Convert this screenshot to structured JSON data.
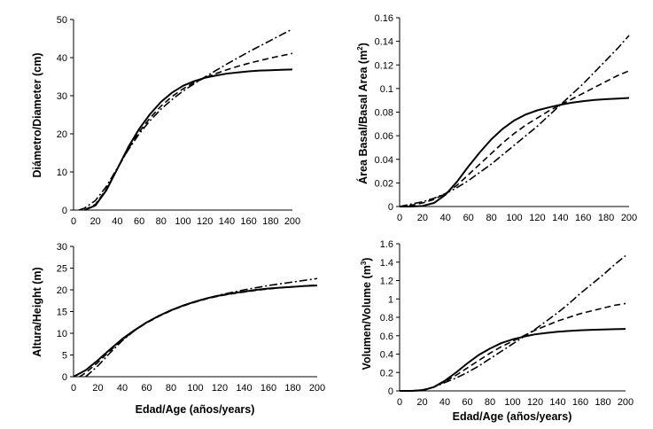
{
  "chart_data": [
    {
      "type": "line",
      "ylabel": "Diámetro/Diameter (cm)",
      "xlabel": "",
      "xlim": [
        0,
        200
      ],
      "ylim": [
        0,
        50
      ],
      "xticks": [
        "0",
        "20",
        "40",
        "60",
        "80",
        "100",
        "120",
        "140",
        "160",
        "180",
        "200"
      ],
      "yticks": [
        "0",
        "10",
        "20",
        "30",
        "40",
        "50"
      ],
      "grid": false,
      "series": [
        {
          "style": "solid",
          "x": [
            10,
            20,
            30,
            40,
            50,
            60,
            70,
            80,
            90,
            100,
            110,
            120,
            130,
            140,
            150,
            160,
            170,
            180,
            190,
            200
          ],
          "y": [
            0,
            1.2,
            5.2,
            10.8,
            16.5,
            21.3,
            25.2,
            28.4,
            30.8,
            32.6,
            33.8,
            34.7,
            35.3,
            35.8,
            36.1,
            36.4,
            36.6,
            36.7,
            36.8,
            36.9
          ]
        },
        {
          "style": "dashed",
          "x": [
            10,
            20,
            30,
            40,
            50,
            60,
            70,
            80,
            90,
            100,
            110,
            120,
            130,
            140,
            150,
            160,
            170,
            180,
            190,
            200
          ],
          "y": [
            0,
            1.5,
            5.5,
            10.8,
            16.0,
            20.5,
            24.2,
            27.3,
            29.8,
            31.8,
            33.4,
            34.7,
            35.8,
            36.8,
            37.7,
            38.5,
            39.2,
            39.9,
            40.5,
            41.1
          ]
        },
        {
          "style": "dashdot",
          "x": [
            5,
            10,
            20,
            30,
            40,
            50,
            60,
            70,
            80,
            90,
            100,
            110,
            120,
            130,
            140,
            150,
            160,
            170,
            180,
            190,
            200
          ],
          "y": [
            0,
            0.5,
            2.5,
            6.2,
            11.0,
            15.8,
            20.0,
            23.5,
            26.5,
            29.0,
            31.2,
            33.1,
            34.9,
            36.6,
            38.3,
            39.9,
            41.5,
            43.0,
            44.5,
            46.0,
            47.5
          ]
        }
      ]
    },
    {
      "type": "line",
      "ylabel": "Área Basal/Basal Area (m²)",
      "xlabel": "",
      "xlim": [
        0,
        200
      ],
      "ylim": [
        0,
        0.16
      ],
      "xticks": [
        "0",
        "20",
        "40",
        "60",
        "80",
        "100",
        "120",
        "140",
        "160",
        "180",
        "200"
      ],
      "yticks": [
        "0",
        "0.02",
        "0.04",
        "0.06",
        "0.08",
        "0.1",
        "0.12",
        "0.14",
        "0.16"
      ],
      "grid": false,
      "series": [
        {
          "style": "solid",
          "x": [
            0,
            10,
            20,
            30,
            40,
            50,
            60,
            70,
            80,
            90,
            100,
            110,
            120,
            130,
            140,
            150,
            160,
            170,
            180,
            190,
            200
          ],
          "y": [
            0,
            0,
            0.0005,
            0.003,
            0.01,
            0.021,
            0.034,
            0.046,
            0.057,
            0.066,
            0.073,
            0.078,
            0.0815,
            0.084,
            0.0862,
            0.088,
            0.0893,
            0.0903,
            0.091,
            0.0915,
            0.092
          ]
        },
        {
          "style": "dashed",
          "x": [
            0,
            10,
            20,
            30,
            40,
            50,
            60,
            70,
            80,
            90,
            100,
            110,
            120,
            130,
            140,
            150,
            160,
            170,
            180,
            190,
            200
          ],
          "y": [
            0,
            0.001,
            0.003,
            0.006,
            0.011,
            0.018,
            0.027,
            0.036,
            0.045,
            0.054,
            0.062,
            0.069,
            0.075,
            0.081,
            0.086,
            0.091,
            0.096,
            0.101,
            0.106,
            0.111,
            0.115
          ]
        },
        {
          "style": "dashdot",
          "x": [
            0,
            10,
            20,
            30,
            40,
            50,
            60,
            70,
            80,
            90,
            100,
            110,
            120,
            130,
            140,
            150,
            160,
            170,
            180,
            190,
            200
          ],
          "y": [
            0,
            0.002,
            0.004,
            0.007,
            0.011,
            0.016,
            0.022,
            0.029,
            0.036,
            0.044,
            0.052,
            0.06,
            0.068,
            0.077,
            0.086,
            0.095,
            0.104,
            0.114,
            0.124,
            0.134,
            0.145
          ]
        }
      ]
    },
    {
      "type": "line",
      "ylabel": "Altura/Height (m)",
      "xlabel": "Edad/Age (años/years)",
      "xlim": [
        0,
        200
      ],
      "ylim": [
        0,
        30
      ],
      "xticks": [
        "0",
        "20",
        "40",
        "60",
        "80",
        "100",
        "120",
        "140",
        "160",
        "180",
        "200"
      ],
      "yticks": [
        "0",
        "5",
        "10",
        "15",
        "20",
        "25",
        "30"
      ],
      "grid": false,
      "series": [
        {
          "style": "solid",
          "x": [
            0,
            10,
            20,
            30,
            40,
            50,
            60,
            70,
            80,
            90,
            100,
            110,
            120,
            130,
            140,
            150,
            160,
            170,
            180,
            190,
            200
          ],
          "y": [
            0,
            1.5,
            3.8,
            6.3,
            8.7,
            10.7,
            12.5,
            14.0,
            15.3,
            16.4,
            17.3,
            18.1,
            18.7,
            19.2,
            19.6,
            20.0,
            20.3,
            20.5,
            20.7,
            20.9,
            21.0
          ]
        },
        {
          "style": "dashed",
          "x": [
            5,
            10,
            20,
            30,
            40,
            50,
            60,
            70,
            80,
            90,
            100,
            110,
            120,
            130,
            140,
            150,
            160,
            170,
            180,
            190,
            200
          ],
          "y": [
            0,
            0.9,
            3.3,
            6.0,
            8.5,
            10.6,
            12.4,
            13.9,
            15.2,
            16.3,
            17.2,
            18.0,
            18.6,
            19.1,
            19.5,
            19.9,
            20.2,
            20.5,
            20.7,
            20.9,
            21.1
          ]
        },
        {
          "style": "dashdot",
          "x": [
            10,
            20,
            30,
            40,
            50,
            60,
            70,
            80,
            90,
            100,
            110,
            120,
            130,
            140,
            150,
            160,
            170,
            180,
            190,
            200
          ],
          "y": [
            0,
            2.5,
            5.5,
            8.3,
            10.6,
            12.5,
            14.0,
            15.3,
            16.4,
            17.3,
            18.1,
            18.8,
            19.4,
            20.0,
            20.5,
            21.0,
            21.4,
            21.8,
            22.2,
            22.6
          ]
        }
      ]
    },
    {
      "type": "line",
      "ylabel": "Volumen/Volume (m³)",
      "xlabel": "Edad/Age (años/years)",
      "xlim": [
        0,
        200
      ],
      "ylim": [
        0,
        1.6
      ],
      "xticks": [
        "0",
        "20",
        "40",
        "60",
        "80",
        "100",
        "120",
        "140",
        "160",
        "180",
        "200"
      ],
      "yticks": [
        "0",
        "0.2",
        "0.4",
        "0.6",
        "0.8",
        "1",
        "1.2",
        "1.4",
        "1.6"
      ],
      "grid": false,
      "series": [
        {
          "style": "solid",
          "x": [
            0,
            10,
            20,
            30,
            40,
            50,
            60,
            70,
            80,
            90,
            100,
            110,
            120,
            130,
            140,
            150,
            160,
            170,
            180,
            190,
            200
          ],
          "y": [
            0,
            0,
            0.005,
            0.04,
            0.11,
            0.2,
            0.3,
            0.39,
            0.46,
            0.52,
            0.56,
            0.59,
            0.615,
            0.63,
            0.643,
            0.652,
            0.659,
            0.664,
            0.668,
            0.671,
            0.673
          ]
        },
        {
          "style": "dashed",
          "x": [
            0,
            10,
            20,
            30,
            40,
            50,
            60,
            70,
            80,
            90,
            100,
            110,
            120,
            130,
            140,
            150,
            160,
            170,
            180,
            190,
            200
          ],
          "y": [
            0,
            0,
            0.01,
            0.04,
            0.1,
            0.17,
            0.25,
            0.33,
            0.41,
            0.48,
            0.54,
            0.6,
            0.66,
            0.71,
            0.76,
            0.8,
            0.84,
            0.87,
            0.9,
            0.93,
            0.95
          ]
        },
        {
          "style": "dashdot",
          "x": [
            0,
            10,
            20,
            30,
            40,
            50,
            60,
            70,
            80,
            90,
            100,
            110,
            120,
            130,
            140,
            150,
            160,
            170,
            180,
            190,
            200
          ],
          "y": [
            0,
            0,
            0.01,
            0.04,
            0.09,
            0.14,
            0.2,
            0.27,
            0.35,
            0.43,
            0.51,
            0.59,
            0.67,
            0.76,
            0.85,
            0.95,
            1.06,
            1.16,
            1.26,
            1.37,
            1.47
          ]
        }
      ]
    }
  ]
}
